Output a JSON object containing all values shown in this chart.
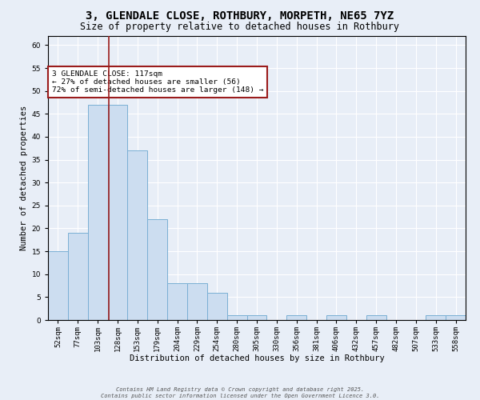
{
  "title": "3, GLENDALE CLOSE, ROTHBURY, MORPETH, NE65 7YZ",
  "subtitle": "Size of property relative to detached houses in Rothbury",
  "xlabel": "Distribution of detached houses by size in Rothbury",
  "ylabel": "Number of detached properties",
  "bin_labels": [
    "52sqm",
    "77sqm",
    "103sqm",
    "128sqm",
    "153sqm",
    "179sqm",
    "204sqm",
    "229sqm",
    "254sqm",
    "280sqm",
    "305sqm",
    "330sqm",
    "356sqm",
    "381sqm",
    "406sqm",
    "432sqm",
    "457sqm",
    "482sqm",
    "507sqm",
    "533sqm",
    "558sqm"
  ],
  "values": [
    15,
    19,
    47,
    47,
    37,
    22,
    8,
    8,
    6,
    1,
    1,
    0,
    1,
    0,
    1,
    0,
    1,
    0,
    0,
    1,
    1
  ],
  "bar_color": "#ccddf0",
  "bar_edge_color": "#7aafd4",
  "ylim": [
    0,
    62
  ],
  "yticks": [
    0,
    5,
    10,
    15,
    20,
    25,
    30,
    35,
    40,
    45,
    50,
    55,
    60
  ],
  "property_size_label": 117,
  "vline_color": "#9b1c1c",
  "annotation_text": "3 GLENDALE CLOSE: 117sqm\n← 27% of detached houses are smaller (56)\n72% of semi-detached houses are larger (148) →",
  "annotation_box_facecolor": "#ffffff",
  "annotation_box_edgecolor": "#9b1c1c",
  "footer_text": "Contains HM Land Registry data © Crown copyright and database right 2025.\nContains public sector information licensed under the Open Government Licence 3.0.",
  "background_color": "#e8eef7",
  "grid_color": "#ffffff",
  "title_fontsize": 10,
  "subtitle_fontsize": 8.5,
  "tick_fontsize": 6.5,
  "ylabel_fontsize": 7.5,
  "xlabel_fontsize": 7.5,
  "annotation_fontsize": 6.8,
  "footer_fontsize": 5.0
}
